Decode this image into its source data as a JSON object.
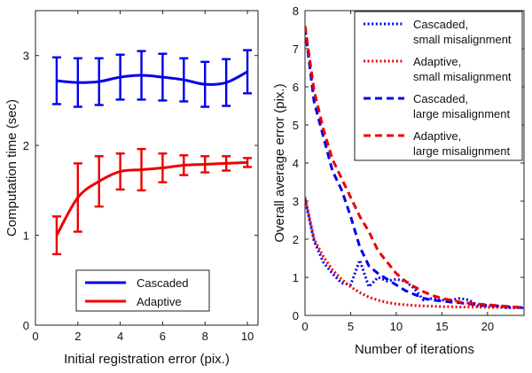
{
  "chart_data": [
    {
      "type": "line",
      "title": "",
      "xlabel": "Initial registration error (pix.)",
      "ylabel": "Computation time (sec)",
      "xlim": [
        0,
        10.5
      ],
      "ylim": [
        0,
        3.5
      ],
      "xticks": [
        0,
        2,
        4,
        6,
        8,
        10
      ],
      "yticks": [
        0,
        1,
        2,
        3
      ],
      "grid": false,
      "legend_position": "bottom-center",
      "x": [
        1,
        2,
        3,
        4,
        5,
        6,
        7,
        8,
        9,
        10
      ],
      "series": [
        {
          "name": "Cascaded",
          "color": "#0000ee",
          "line_style": "solid",
          "values": [
            2.72,
            2.7,
            2.71,
            2.76,
            2.78,
            2.76,
            2.73,
            2.68,
            2.7,
            2.82
          ],
          "error": [
            0.26,
            0.27,
            0.26,
            0.25,
            0.27,
            0.26,
            0.24,
            0.25,
            0.26,
            0.24
          ]
        },
        {
          "name": "Adaptive",
          "color": "#ee0000",
          "line_style": "solid",
          "values": [
            1.0,
            1.42,
            1.6,
            1.71,
            1.73,
            1.75,
            1.78,
            1.79,
            1.8,
            1.81
          ],
          "error": [
            0.21,
            0.38,
            0.28,
            0.2,
            0.23,
            0.16,
            0.11,
            0.09,
            0.08,
            0.05
          ]
        }
      ]
    },
    {
      "type": "line",
      "title": "",
      "xlabel": "Number of iterations",
      "ylabel": "Overall average error (pix.)",
      "xlim": [
        0,
        24
      ],
      "ylim": [
        0,
        8
      ],
      "xticks": [
        0,
        5,
        10,
        15,
        20
      ],
      "yticks": [
        0,
        1,
        2,
        3,
        4,
        5,
        6,
        7,
        8
      ],
      "grid": false,
      "legend_position": "top-right",
      "x": [
        0,
        1,
        2,
        3,
        4,
        5,
        6,
        7,
        8,
        9,
        10,
        11,
        12,
        13,
        14,
        15,
        16,
        17,
        18,
        19,
        20,
        21,
        22,
        23,
        24
      ],
      "series": [
        {
          "name": "Cascaded,\nsmall misalignment",
          "color": "#0000ee",
          "line_style": "dotted",
          "values": [
            3.05,
            1.95,
            1.4,
            1.1,
            0.85,
            0.8,
            1.45,
            0.75,
            1.0,
            0.9,
            0.95,
            0.9,
            0.7,
            0.4,
            0.45,
            0.4,
            0.4,
            0.45,
            0.4,
            0.25,
            0.25,
            0.25,
            0.2,
            0.2,
            0.2
          ]
        },
        {
          "name": "Adaptive,\nsmall misalignment",
          "color": "#ee0000",
          "line_style": "dotted",
          "values": [
            3.1,
            2.0,
            1.55,
            1.2,
            0.95,
            0.75,
            0.6,
            0.48,
            0.4,
            0.34,
            0.3,
            0.28,
            0.26,
            0.25,
            0.24,
            0.23,
            0.23,
            0.22,
            0.22,
            0.22,
            0.21,
            0.21,
            0.21,
            0.21,
            0.2
          ]
        },
        {
          "name": "Cascaded,\nlarge misalignment",
          "color": "#0000ee",
          "line_style": "dashed",
          "values": [
            7.55,
            5.6,
            4.7,
            3.8,
            3.3,
            2.6,
            1.8,
            1.3,
            1.1,
            0.95,
            0.8,
            0.65,
            0.55,
            0.45,
            0.4,
            0.38,
            0.35,
            0.33,
            0.3,
            0.28,
            0.26,
            0.25,
            0.23,
            0.22,
            0.2
          ]
        },
        {
          "name": "Adaptive,\nlarge misalignment",
          "color": "#ee0000",
          "line_style": "dashed",
          "values": [
            7.6,
            5.9,
            4.9,
            4.1,
            3.6,
            3.1,
            2.6,
            2.2,
            1.7,
            1.4,
            1.1,
            0.9,
            0.75,
            0.62,
            0.52,
            0.45,
            0.4,
            0.35,
            0.32,
            0.3,
            0.28,
            0.26,
            0.24,
            0.22,
            0.2
          ]
        }
      ]
    }
  ]
}
